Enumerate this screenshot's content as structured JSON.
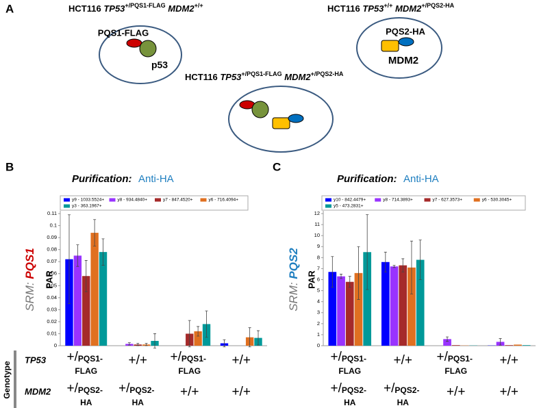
{
  "panel_labels": [
    "A",
    "B",
    "C"
  ],
  "diagram": {
    "complexes": [
      {
        "cell_line": "HCT116",
        "gene1": "TP53",
        "allele1": "+/PQS1-FLAG",
        "gene2": "MDM2",
        "allele2": "+/+",
        "proteins": [
          "PQS1-FLAG",
          "p53"
        ]
      },
      {
        "cell_line": "HCT116",
        "gene1": "TP53",
        "allele1": "+/+",
        "gene2": "MDM2",
        "allele2": "+/PQS2-HA",
        "proteins": [
          "PQS2-HA",
          "MDM2"
        ]
      },
      {
        "cell_line": "HCT116",
        "gene1": "TP53",
        "allele1": "+/PQS1-FLAG",
        "gene2": "MDM2",
        "allele2": "+/PQS2-HA"
      }
    ]
  },
  "genotype": {
    "title": "Genotype",
    "rows": [
      "TP53",
      "MDM2"
    ]
  },
  "chart_data": [
    {
      "type": "bar",
      "purification_label": "Purification:",
      "purification": "Anti-HA",
      "ylabel_prefix": "SRM:",
      "ylabel_target": "PQS1",
      "ylabel": "PAR",
      "categories": [
        null,
        null,
        null,
        null
      ],
      "ylim": [
        0,
        0.11
      ],
      "yticks": [
        0,
        0.01,
        0.02,
        0.03,
        0.04,
        0.05,
        0.06,
        0.07,
        0.08,
        0.09,
        0.1,
        0.11
      ],
      "series": [
        {
          "name": "y9 - 1033.5524+",
          "color": "#0000ff",
          "values": [
            0.072,
            0,
            0,
            0.002
          ],
          "errors": [
            0.037,
            0,
            0,
            0.003
          ]
        },
        {
          "name": "y8 - 934.4840+",
          "color": "#9933ff",
          "values": [
            0.075,
            0.0015,
            0,
            0
          ],
          "errors": [
            0.009,
            0.001,
            0,
            0
          ]
        },
        {
          "name": "y7 - 847.4520+",
          "color": "#a52a2a",
          "values": [
            0.058,
            0.001,
            0.01,
            0
          ],
          "errors": [
            0.013,
            0.001,
            0.011,
            0
          ]
        },
        {
          "name": "y6 - 716.4094+",
          "color": "#e07020",
          "values": [
            0.094,
            0.001,
            0.012,
            0.007
          ],
          "errors": [
            0.011,
            0.001,
            0.004,
            0.008
          ]
        },
        {
          "name": "y3 - 363.1967+",
          "color": "#009999",
          "values": [
            0.078,
            0.004,
            0.018,
            0.0065
          ],
          "errors": [
            0.011,
            0.006,
            0.011,
            0.006
          ]
        }
      ],
      "genotype_cells": [
        [
          [
            "+/",
            "PQS1-",
            "FLAG"
          ],
          [
            "+/+"
          ],
          [
            "+/",
            "PQS1-",
            "FLAG"
          ],
          [
            "+/+"
          ]
        ],
        [
          [
            "+/",
            "PQS2-",
            "HA"
          ],
          [
            "+/",
            "PQS2-",
            "HA"
          ],
          [
            "+/+"
          ],
          [
            "+/+"
          ]
        ]
      ]
    },
    {
      "type": "bar",
      "purification_label": "Purification:",
      "purification": "Anti-HA",
      "ylabel_prefix": "SRM:",
      "ylabel_target": "PQS2",
      "ylabel": "PAR",
      "categories": [
        null,
        null,
        null,
        null
      ],
      "ylim": [
        0,
        12
      ],
      "yticks": [
        0,
        1,
        2,
        3,
        4,
        5,
        6,
        7,
        8,
        9,
        10,
        11,
        12
      ],
      "series": [
        {
          "name": "y10 - 842.4479+",
          "color": "#0000ff",
          "values": [
            6.7,
            7.6,
            0,
            0.02
          ],
          "errors": [
            1.4,
            0.9,
            0,
            0
          ]
        },
        {
          "name": "y8 - 714.3893+",
          "color": "#9933ff",
          "values": [
            6.3,
            7.2,
            0.6,
            0.35
          ],
          "errors": [
            0.2,
            0.1,
            0.2,
            0.3
          ]
        },
        {
          "name": "y7 - 627.3573+",
          "color": "#a52a2a",
          "values": [
            5.8,
            7.3,
            0.05,
            0.05
          ],
          "errors": [
            0.5,
            0.6,
            0,
            0
          ]
        },
        {
          "name": "y6 - 530.3045+",
          "color": "#e07020",
          "values": [
            6.6,
            7.1,
            0.02,
            0.1
          ],
          "errors": [
            2.4,
            2.4,
            0,
            0
          ]
        },
        {
          "name": "y5 - 473.2831+",
          "color": "#009999",
          "values": [
            8.5,
            7.8,
            0.02,
            0.05
          ],
          "errors": [
            3.4,
            1.8,
            0,
            0
          ]
        }
      ],
      "genotype_cells": [
        [
          [
            "+/",
            "PQS1-",
            "FLAG"
          ],
          [
            "+/+"
          ],
          [
            "+/",
            "PQS1-",
            "FLAG"
          ],
          [
            "+/+"
          ]
        ],
        [
          [
            "+/",
            "PQS2-",
            "HA"
          ],
          [
            "+/",
            "PQS2-",
            "HA"
          ],
          [
            "+/+"
          ],
          [
            "+/+"
          ]
        ]
      ]
    }
  ]
}
